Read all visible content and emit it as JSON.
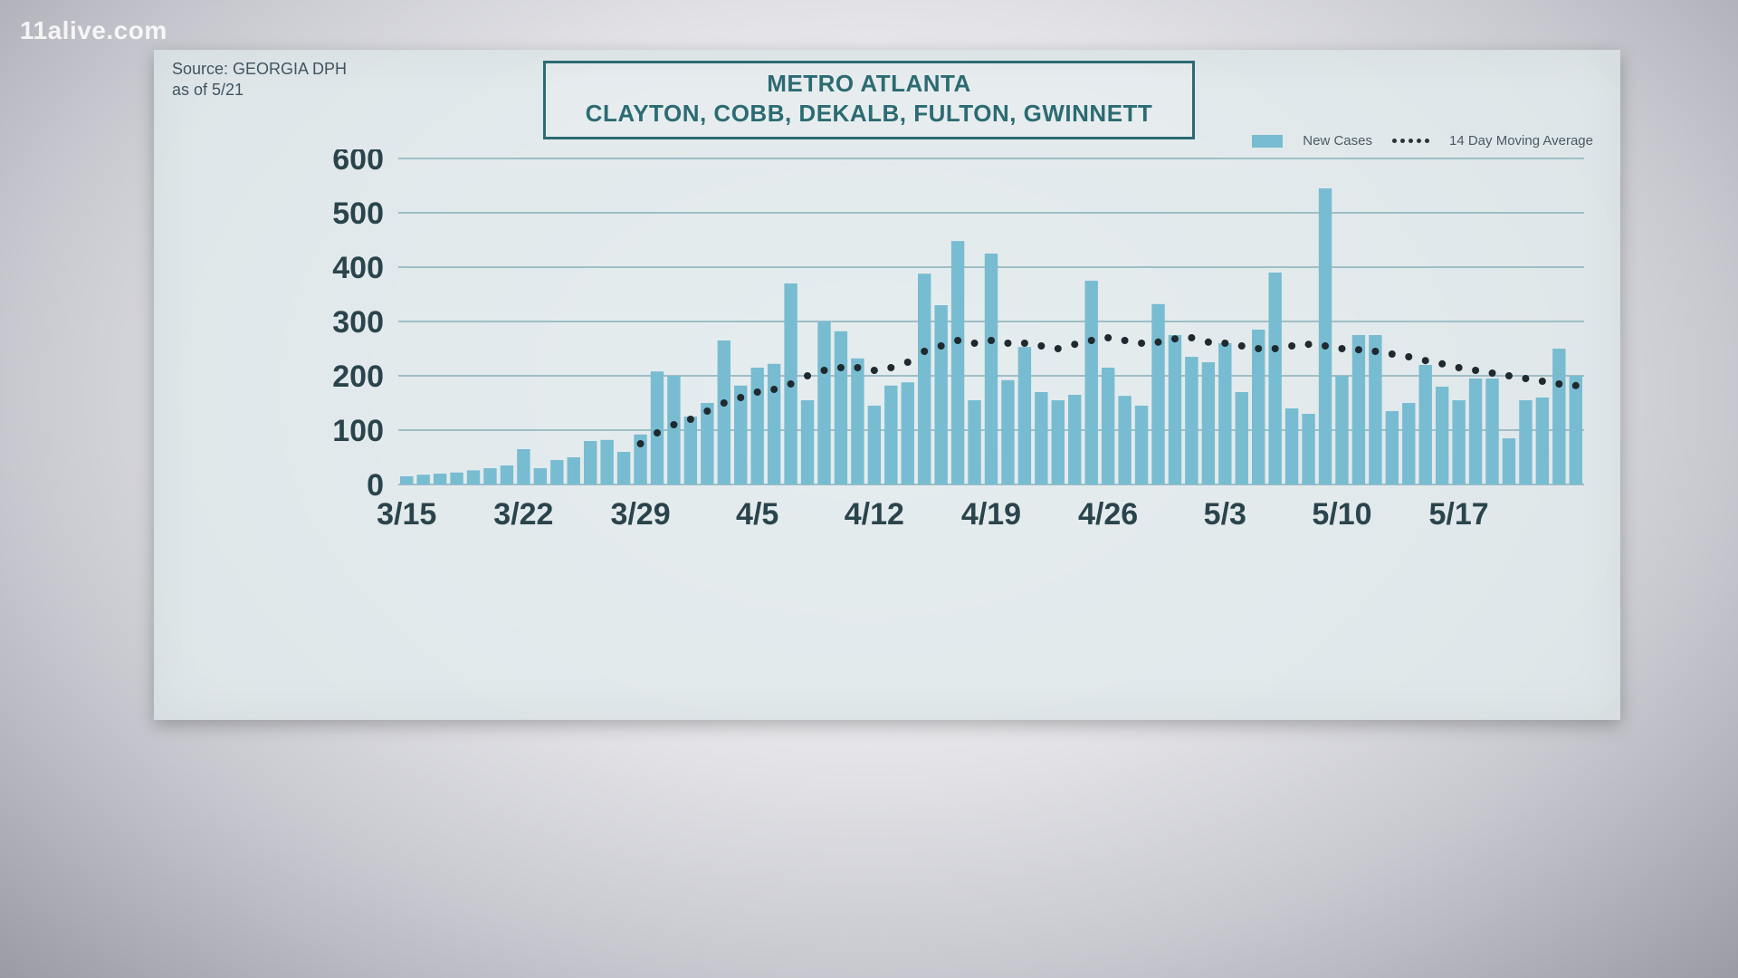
{
  "watermark": "11alive.com",
  "source_line1": "Source: GEORGIA DPH",
  "source_line2": "as of 5/21",
  "title_line1": "METRO ATLANTA",
  "title_line2": "CLAYTON, COBB, DEKALB, FULTON, GWINNETT",
  "legend": {
    "bars": "New Cases",
    "line": "14 Day Moving Average"
  },
  "chart": {
    "type": "bar",
    "bar_color": "#78bcd1",
    "grid_color": "#9fbec6",
    "avg_dot_color": "#1e2a2f",
    "background_color": "rgba(225,233,236,0.88)",
    "title_fontsize": 26,
    "label_fontsize": 34,
    "ylim": [
      0,
      600
    ],
    "ytick_step": 100,
    "yticks": [
      0,
      100,
      200,
      300,
      400,
      500,
      600
    ],
    "xticks": [
      "3/15",
      "3/22",
      "3/29",
      "4/5",
      "4/12",
      "4/19",
      "4/26",
      "5/3",
      "5/10",
      "5/17"
    ],
    "xtick_every": 7,
    "bar_gap_ratio": 0.22,
    "avg_dot_radius": 4,
    "values": [
      15,
      18,
      20,
      22,
      26,
      30,
      35,
      65,
      30,
      45,
      50,
      80,
      82,
      60,
      92,
      208,
      200,
      125,
      150,
      265,
      182,
      215,
      222,
      370,
      155,
      300,
      282,
      232,
      145,
      182,
      188,
      388,
      330,
      448,
      155,
      425,
      192,
      253,
      170,
      155,
      165,
      375,
      215,
      163,
      145,
      332,
      275,
      235,
      225,
      260,
      170,
      285,
      390,
      140,
      130,
      545,
      200,
      275,
      275,
      135,
      150,
      220,
      180,
      155,
      195,
      195,
      85,
      155,
      160,
      250,
      200
    ],
    "moving_avg_start_index": 14,
    "moving_avg": [
      75,
      95,
      110,
      120,
      135,
      150,
      160,
      170,
      175,
      185,
      200,
      210,
      215,
      215,
      210,
      215,
      225,
      245,
      255,
      265,
      260,
      265,
      260,
      260,
      255,
      250,
      258,
      265,
      270,
      265,
      260,
      262,
      268,
      270,
      262,
      260,
      255,
      250,
      250,
      255,
      258,
      255,
      250,
      248,
      245,
      240,
      235,
      228,
      222,
      215,
      210,
      205,
      200,
      195,
      190,
      185,
      182
    ]
  }
}
